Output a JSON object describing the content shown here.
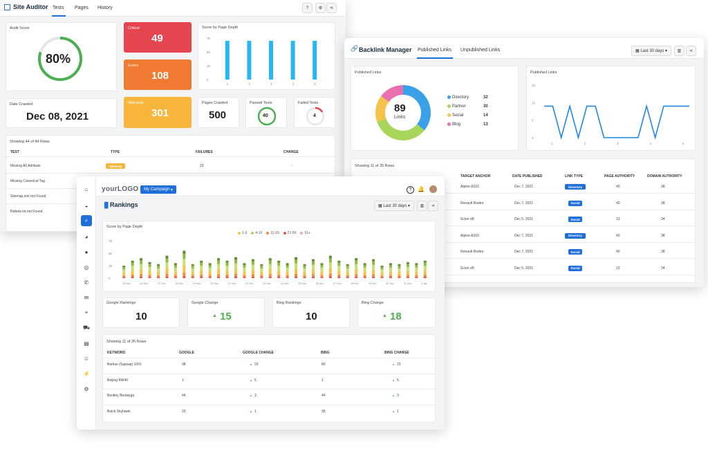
{
  "site_auditor": {
    "title": "Site Auditor",
    "tabs": [
      "Tests",
      "Pages",
      "History"
    ],
    "audit_score": {
      "label": "Audit Score",
      "value": "80%",
      "fraction": 0.8
    },
    "critical": {
      "label": "Critical",
      "value": "49"
    },
    "errors": {
      "label": "Errors",
      "value": "108"
    },
    "warnings": {
      "label": "Warnings",
      "value": "301"
    },
    "score_chart_title": "Score by Page Depth",
    "date_crawled": {
      "label": "Date Crawled",
      "value": "Dec 08, 2021"
    },
    "pages_crawled": {
      "label": "Pages Crawled",
      "value": "500"
    },
    "passed_tests": {
      "label": "Passed Tests",
      "value": "40"
    },
    "failed_tests": {
      "label": "Failed Tests",
      "value": "4"
    },
    "table_caption": "Showing 44 of 44 Rows",
    "columns": [
      "TEST",
      "TYPE",
      "FAILURES",
      "CHANGE"
    ],
    "rows": [
      {
        "test": "Missing Alt Attribute",
        "type": "Warning",
        "failures": "23",
        "change": "-"
      },
      {
        "test": "Missing Canonical Tag",
        "type": "",
        "failures": "",
        "change": ""
      },
      {
        "test": "Sitemap.xml not Found",
        "type": "",
        "failures": "",
        "change": ""
      },
      {
        "test": "Robots.txt not Found",
        "type": "",
        "failures": "",
        "change": ""
      }
    ]
  },
  "backlink": {
    "title": "Backlink Manager",
    "tabs": [
      "Published Links",
      "Unpublished Links"
    ],
    "date_range": "Last 30 days",
    "donut_title": "Published Links",
    "donut_center_value": "89",
    "donut_center_label": "Links",
    "legend": [
      {
        "name": "Directory",
        "value": "32",
        "color": "#3aa0e8"
      },
      {
        "name": "Partner",
        "value": "30",
        "color": "#a8d65a"
      },
      {
        "name": "Social",
        "value": "14",
        "color": "#f5c24b"
      },
      {
        "name": "Blog",
        "value": "13",
        "color": "#e86fb0"
      }
    ],
    "line_title": "Published Links",
    "table_caption": "Showing 11 of 35 Rows",
    "columns": [
      "TARGET ANCHOR",
      "DATE PUBLISHED",
      "LINK TYPE",
      "PAGE AUTHORITY",
      "DOMAIN AUTHORITY"
    ],
    "rows": [
      {
        "anchor": "Alpine A310",
        "date": "Dec 7, 2021",
        "type": "Directory",
        "pa": "40",
        "da": "38"
      },
      {
        "anchor": "Renault Rodeo",
        "date": "Dec 7, 2021",
        "type": "Social",
        "pa": "40",
        "da": "38"
      },
      {
        "anchor": "Scion xB",
        "date": "Dec 5, 2021",
        "type": "Social",
        "pa": "13",
        "da": "34"
      },
      {
        "anchor": "Alpine A310",
        "date": "Dec 7, 2021",
        "type": "Directory",
        "pa": "40",
        "da": "38"
      },
      {
        "anchor": "Renault Rodeo",
        "date": "Dec 7, 2021",
        "type": "Social",
        "pa": "40",
        "da": "38"
      },
      {
        "anchor": "Scion xB",
        "date": "Dec 5, 2021",
        "type": "Social",
        "pa": "13",
        "da": "34"
      }
    ]
  },
  "rankings": {
    "logo": "yourLOGO",
    "campaign": "My Campaign",
    "title": "Rankings",
    "date_range": "Last 30 days",
    "chart_title": "Score by Page Depth",
    "legend": [
      {
        "name": "1-3",
        "color": "#f5c24b"
      },
      {
        "name": "4-10",
        "color": "#a8d65a"
      },
      {
        "name": "11-20",
        "color": "#f08a3c"
      },
      {
        "name": "21-50",
        "color": "#e85454"
      },
      {
        "name": "51+",
        "color": "#f7a3a3"
      }
    ],
    "google_rankings": {
      "label": "Google Rankings",
      "value": "10"
    },
    "google_change": {
      "label": "Google Change",
      "value": "15"
    },
    "bing_rankings": {
      "label": "Bing Rankings",
      "value": "10"
    },
    "bing_change": {
      "label": "Bing Change",
      "value": "18"
    },
    "table_caption": "Showing 11 of 35 Rows",
    "columns": [
      "KEYWORD",
      "GOOGLE",
      "GOOGLE CHANGE",
      "BING",
      "BING CHANGE"
    ],
    "rows": [
      {
        "keyword": "Barkas (Sapsap) 1001",
        "google": "98",
        "gchange": "23",
        "bing": "80",
        "bchange": "23"
      },
      {
        "keyword": "Beijing BW40",
        "google": "1",
        "gchange": "5",
        "bing": "1",
        "bchange": "5"
      },
      {
        "keyword": "Bentley Bentayga",
        "google": "44",
        "gchange": "3",
        "bing": "44",
        "bchange": "3"
      },
      {
        "keyword": "Buick Skyhawk",
        "google": "33",
        "gchange": "1",
        "bing": "35",
        "bchange": "1"
      }
    ]
  },
  "chart_data": [
    {
      "type": "bar",
      "categories": [
        "1",
        "2",
        "3",
        "4",
        "5"
      ],
      "values": [
        70,
        70,
        70,
        70,
        70
      ],
      "ylim": [
        0,
        75
      ],
      "yticks": [
        "75",
        "50",
        "25",
        "0"
      ],
      "title": "Score by Page Depth"
    },
    {
      "type": "line",
      "values": [
        3,
        3,
        0,
        3,
        0,
        3,
        3,
        0,
        0,
        0,
        0,
        0,
        3,
        0,
        3,
        3,
        3,
        3
      ],
      "yticks": [
        "15",
        "10",
        "5",
        "0"
      ],
      "xticks": [
        "1",
        "2",
        "3",
        "4",
        "5"
      ],
      "title": "Published Links"
    },
    {
      "type": "bar",
      "stacked": true,
      "yticks": [
        "75",
        "50",
        "25",
        "0"
      ],
      "totals": [
        25,
        35,
        40,
        32,
        28,
        45,
        30,
        55,
        28,
        35,
        30,
        40,
        35,
        42,
        30,
        38,
        28,
        40,
        35,
        30,
        42,
        28,
        38,
        30,
        45,
        35,
        28,
        40,
        30,
        38,
        25,
        30,
        28,
        32,
        30,
        35
      ],
      "xticks": [
        "15 Dec",
        "16 Dec",
        "17 Dec",
        "18 Dec",
        "19 Dec",
        "20 Dec",
        "21 Dec",
        "22 Dec",
        "23 Dec",
        "24 Dec",
        "25 Dec",
        "26 Dec",
        "27 Dec",
        "28 Dec",
        "29 Dec",
        "30 Dec",
        "31 Dec",
        "1 Jan"
      ],
      "title": "Score by Page Depth"
    }
  ]
}
